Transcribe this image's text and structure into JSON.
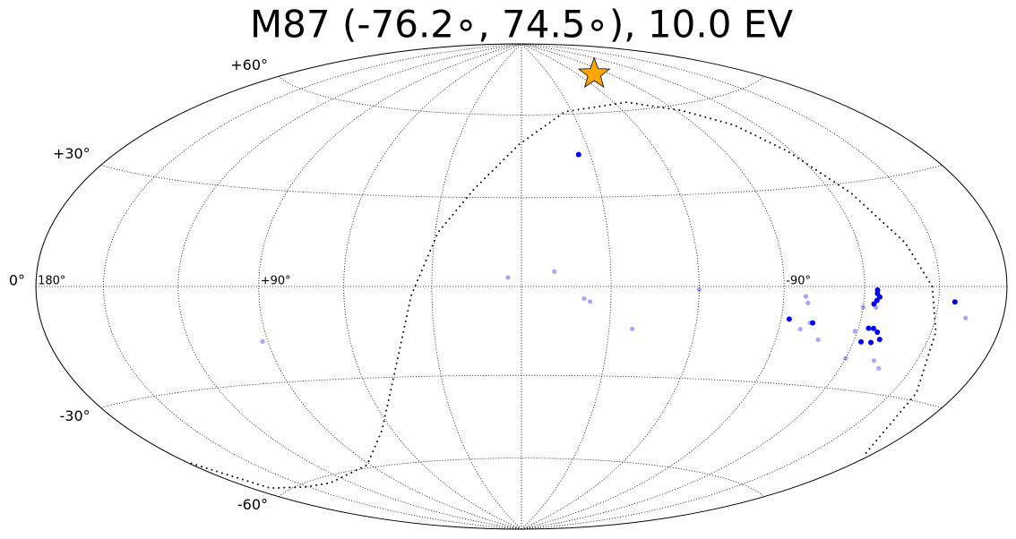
{
  "chart_data": {
    "type": "scatter",
    "projection": "hammer",
    "title": "M87 (-76.2∘, 74.5∘), 10.0 EV",
    "xlim": [
      180,
      -180
    ],
    "ylim": [
      -90,
      90
    ],
    "xticks": [
      {
        "value": 180,
        "label": "180°"
      },
      {
        "value": 150,
        "label": null
      },
      {
        "value": 120,
        "label": null
      },
      {
        "value": 90,
        "label": "+90°"
      },
      {
        "value": 60,
        "label": null
      },
      {
        "value": 30,
        "label": null
      },
      {
        "value": 0,
        "label": null
      },
      {
        "value": -30,
        "label": null
      },
      {
        "value": -60,
        "label": null
      },
      {
        "value": -90,
        "label": "-90°"
      },
      {
        "value": -120,
        "label": null
      },
      {
        "value": -150,
        "label": null
      }
    ],
    "yticks": [
      {
        "value": 60,
        "label": "+60°"
      },
      {
        "value": 30,
        "label": "+30°"
      },
      {
        "value": 0,
        "label": "0°"
      },
      {
        "value": -30,
        "label": "-30°"
      },
      {
        "value": -60,
        "label": "-60°"
      }
    ],
    "grid": true,
    "series": [
      {
        "color": "#0000ff",
        "opacity": 1,
        "x": [
          -25,
          -93,
          -102,
          -125,
          -125,
          -124,
          -126,
          -125,
          -124,
          -128,
          -127,
          -123,
          -130,
          -126,
          -157
        ],
        "values": [
          45,
          -10,
          -11,
          -2,
          -4,
          -5,
          -3,
          -1,
          -12,
          -13,
          -16,
          -16,
          -15,
          -12,
          -4
        ]
      },
      {
        "color": "#0000ff",
        "opacity": 0.35,
        "x": [
          4.5,
          -11,
          -21,
          -23,
          -38,
          -60,
          92,
          -98,
          -99,
          -98,
          -101,
          -106,
          -120,
          -125,
          -120,
          -119,
          -132,
          -136,
          -163
        ],
        "values": [
          3,
          5,
          -4,
          -5,
          -14,
          -1,
          -17,
          -3,
          -5,
          -13,
          -11,
          -16,
          -21,
          -6,
          -6,
          -13,
          -21,
          -23,
          -8
        ]
      }
    ],
    "boundary": {
      "color": "#000000",
      "x": [
        179,
        171,
        151,
        132,
        92,
        65,
        48,
        37,
        29,
        18,
        1,
        -26,
        -68,
        -93,
        -109,
        -118,
        -128,
        -139,
        -147,
        -152,
        -161,
        -178
      ],
      "values": [
        -47,
        -58,
        -61,
        -62,
        -59,
        -48,
        -30,
        -3,
        18,
        33,
        49,
        61,
        63,
        58,
        51,
        41,
        27,
        12,
        0,
        -12,
        -28,
        -45
      ]
    },
    "source": {
      "x": -76.2,
      "y": 74.5,
      "color": "#ffa500"
    }
  }
}
